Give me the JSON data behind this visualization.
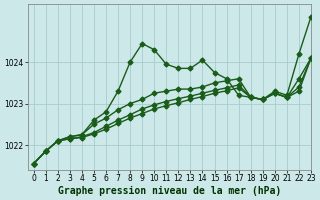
{
  "title": "Graphe pression niveau de la mer (hPa)",
  "bg_color": "#cce8e8",
  "grid_color": "#a8cccc",
  "line_color": "#1a5c1a",
  "xlim": [
    -0.5,
    23
  ],
  "ylim": [
    1021.4,
    1025.4
  ],
  "yticks": [
    1022,
    1023,
    1024
  ],
  "xticks": [
    0,
    1,
    2,
    3,
    4,
    5,
    6,
    7,
    8,
    9,
    10,
    11,
    12,
    13,
    14,
    15,
    16,
    17,
    18,
    19,
    20,
    21,
    22,
    23
  ],
  "series": [
    [
      1021.55,
      1021.85,
      1022.1,
      1022.2,
      1022.25,
      1022.6,
      1022.8,
      1023.3,
      1024.0,
      1024.45,
      1024.3,
      1023.95,
      1023.85,
      1023.85,
      1024.05,
      1023.75,
      1023.6,
      1023.2,
      1023.15,
      1023.1,
      1023.3,
      1023.2,
      1024.2,
      1025.1
    ],
    [
      1021.55,
      1021.85,
      1022.1,
      1022.2,
      1022.25,
      1022.5,
      1022.65,
      1022.85,
      1023.0,
      1023.1,
      1023.25,
      1023.3,
      1023.35,
      1023.35,
      1023.4,
      1023.5,
      1023.55,
      1023.6,
      1023.15,
      1023.1,
      1023.25,
      1023.15,
      1023.6,
      1024.1
    ],
    [
      1021.55,
      1021.85,
      1022.1,
      1022.15,
      1022.2,
      1022.3,
      1022.45,
      1022.6,
      1022.73,
      1022.87,
      1022.97,
      1023.05,
      1023.12,
      1023.18,
      1023.25,
      1023.32,
      1023.38,
      1023.45,
      1023.15,
      1023.1,
      1023.25,
      1023.15,
      1023.4,
      1024.1
    ],
    [
      1021.55,
      1021.85,
      1022.1,
      1022.15,
      1022.18,
      1022.27,
      1022.38,
      1022.52,
      1022.65,
      1022.76,
      1022.87,
      1022.95,
      1023.02,
      1023.1,
      1023.17,
      1023.25,
      1023.31,
      1023.38,
      1023.15,
      1023.1,
      1023.25,
      1023.15,
      1023.3,
      1024.1
    ]
  ],
  "marker": "D",
  "markersize": 2.5,
  "linewidth": 1.0,
  "title_fontsize": 7,
  "tick_fontsize": 5.5,
  "figsize": [
    3.2,
    2.0
  ],
  "dpi": 100
}
